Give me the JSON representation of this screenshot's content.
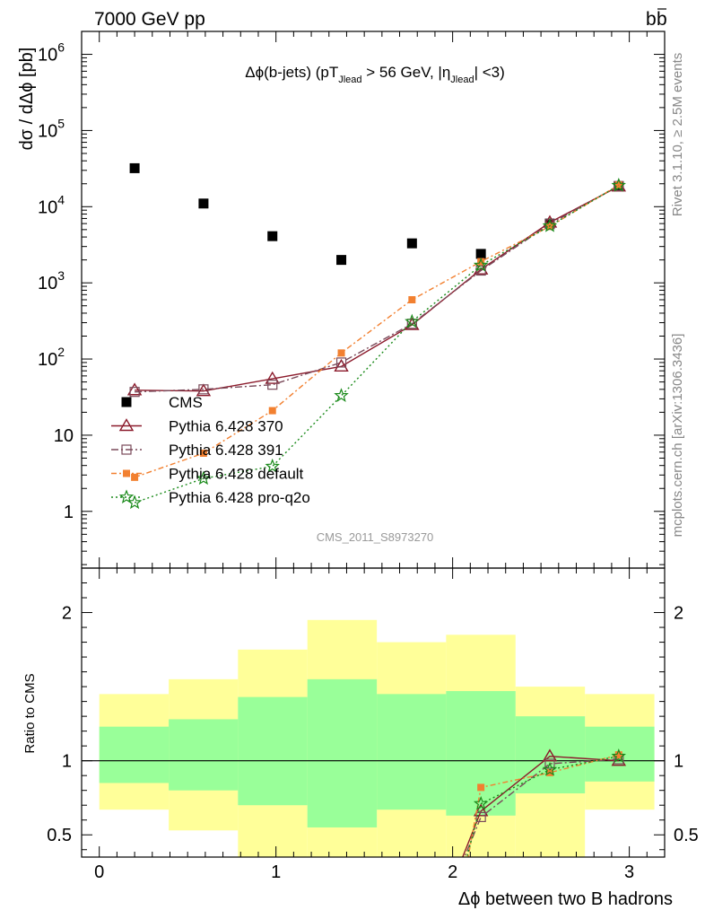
{
  "header": {
    "left": "7000 GeV pp",
    "right": "b",
    "right_bar": "b"
  },
  "side_labels": {
    "rivet": "Rivet 3.1.10, ≥ 2.5M events",
    "mcplots": "mcplots.cern.ch [arXiv:1306.3436]"
  },
  "chart_data": [
    {
      "type": "scatter",
      "panel": "main",
      "title": {
        "prefix": "Δϕ(b-jets) (pT",
        "sub1": "Jlead",
        "middle": " >  56 GeV, |η",
        "sub2": "Jlead",
        "suffix": "| <3)"
      },
      "ylabel": "dσ / dΔϕ [pb]",
      "yscale": "log",
      "ylim": [
        0.18,
        2000000
      ],
      "xlim": [
        -0.1,
        3.2
      ],
      "watermark": "CMS_2011_S8973270",
      "yticks": [
        {
          "value": 1,
          "label": "1"
        },
        {
          "value": 10,
          "label": "10"
        },
        {
          "value": 100,
          "label": "10",
          "exp": "2"
        },
        {
          "value": 1000,
          "label": "10",
          "exp": "3"
        },
        {
          "value": 10000,
          "label": "10",
          "exp": "4"
        },
        {
          "value": 100000,
          "label": "10",
          "exp": "5"
        },
        {
          "value": 1000000,
          "label": "10",
          "exp": "6"
        }
      ],
      "series": [
        {
          "name": "CMS",
          "color": "#000000",
          "marker": "square",
          "x": [
            0.2,
            0.59,
            0.98,
            1.37,
            1.77,
            2.16,
            2.55,
            2.94
          ],
          "y": [
            32000,
            11000,
            4100,
            2000,
            3300,
            2400,
            6000,
            18500
          ]
        },
        {
          "name": "Pythia 6.428 370",
          "color": "#8b1a2b",
          "marker": "triangle",
          "dash": "",
          "x": [
            0.2,
            0.59,
            0.98,
            1.37,
            1.77,
            2.16,
            2.55,
            2.94
          ],
          "y": [
            39,
            38,
            55,
            80,
            280,
            1500,
            6200,
            18500
          ]
        },
        {
          "name": "Pythia 6.428 391",
          "color": "#7a4a5a",
          "marker": "open-square",
          "dash": "8,3,2,3",
          "x": [
            0.2,
            0.59,
            0.98,
            1.37,
            1.77,
            2.16,
            2.55,
            2.94
          ],
          "y": [
            37,
            40,
            46,
            90,
            290,
            1450,
            5900,
            18700
          ]
        },
        {
          "name": "Pythia 6.428 default",
          "color": "#f28030",
          "marker": "filled-square",
          "dash": "6,3,2,3",
          "x": [
            0.2,
            0.59,
            0.98,
            1.37,
            1.77,
            2.16,
            2.55,
            2.94
          ],
          "y": [
            2.8,
            5.8,
            21,
            120,
            600,
            1900,
            5500,
            19300
          ]
        },
        {
          "name": "Pythia 6.428 pro-q2o",
          "color": "#1a8a1a",
          "marker": "star",
          "dash": "2,3",
          "x": [
            0.2,
            0.59,
            0.98,
            1.37,
            1.77,
            2.16,
            2.55,
            2.94
          ],
          "y": [
            1.3,
            2.7,
            3.9,
            33,
            310,
            1700,
            5600,
            19000
          ]
        }
      ],
      "legend": {
        "position": "bottom-left"
      }
    },
    {
      "type": "line",
      "panel": "ratio",
      "ylabel": "Ratio to CMS",
      "xlabel": "Δϕ between two B hadrons",
      "ylim": [
        0.35,
        2.3
      ],
      "xlim": [
        -0.1,
        3.2
      ],
      "xticks": [
        "0",
        "1",
        "2",
        "3"
      ],
      "yticks": [
        "0.5",
        "1",
        "2"
      ],
      "bands": {
        "edges": [
          0,
          0.393,
          0.785,
          1.178,
          1.571,
          1.963,
          2.356,
          2.749,
          3.142
        ],
        "yellow": [
          [
            0.67,
            1.45
          ],
          [
            0.53,
            1.55
          ],
          [
            0.33,
            1.75
          ],
          [
            0.33,
            1.95
          ],
          [
            0.33,
            1.8
          ],
          [
            0.33,
            1.85
          ],
          [
            0.33,
            1.5
          ],
          [
            0.67,
            1.45
          ]
        ],
        "green": [
          [
            0.85,
            1.23
          ],
          [
            0.8,
            1.28
          ],
          [
            0.7,
            1.43
          ],
          [
            0.55,
            1.55
          ],
          [
            0.67,
            1.45
          ],
          [
            0.63,
            1.47
          ],
          [
            0.78,
            1.3
          ],
          [
            0.86,
            1.23
          ]
        ],
        "yellow_color": "#ffff99",
        "green_color": "#99ff99"
      },
      "series": [
        {
          "name": "Pythia 6.428 370",
          "x": [
            2.04,
            2.16,
            2.55,
            2.94
          ],
          "y": [
            0.3,
            0.66,
            1.03,
            1.0
          ]
        },
        {
          "name": "Pythia 6.428 391",
          "x": [
            2.05,
            2.16,
            2.55,
            2.94
          ],
          "y": [
            0.3,
            0.62,
            0.98,
            1.01
          ]
        },
        {
          "name": "Pythia 6.428 default",
          "x": [
            2.08,
            2.16,
            2.55,
            2.94
          ],
          "y": [
            0.3,
            0.82,
            0.92,
            1.04
          ]
        },
        {
          "name": "Pythia 6.428 pro-q2o",
          "x": [
            2.07,
            2.16,
            2.55,
            2.94
          ],
          "y": [
            0.3,
            0.71,
            0.94,
            1.03
          ]
        }
      ]
    }
  ]
}
